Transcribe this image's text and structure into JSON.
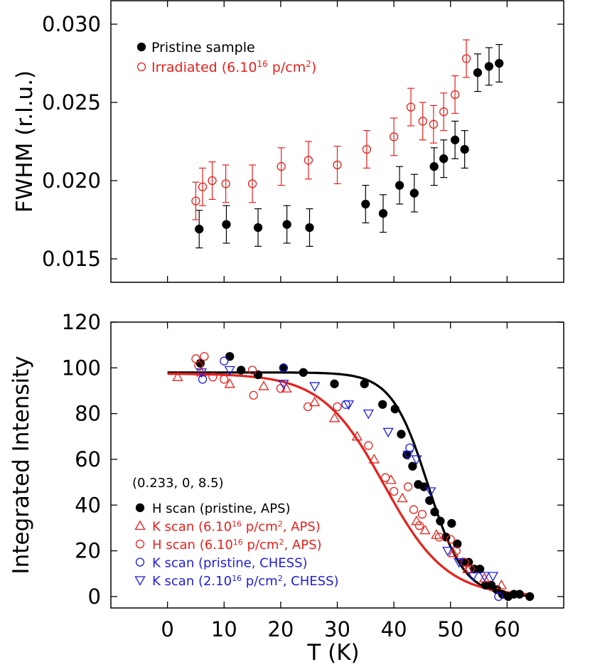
{
  "colors": {
    "black": "#000000",
    "red": "#e8201c",
    "blue": "#1e1ee0"
  },
  "chart_data": [
    {
      "type": "scatter",
      "panel": "top",
      "title": "",
      "xlabel": "",
      "ylabel": "FWHM (r.l.u.)",
      "xlim": [
        -10,
        70
      ],
      "ylim": [
        0.0135,
        0.0315
      ],
      "xticks": [
        0,
        10,
        20,
        30,
        40,
        50,
        60
      ],
      "yticks": [
        0.015,
        0.02,
        0.025,
        0.03
      ],
      "ytick_labels": [
        "0.015",
        "0.020",
        "0.025",
        "0.030"
      ],
      "legend_position": "top-left",
      "legend": [
        {
          "label": "Pristine sample",
          "marker": "filled-circle",
          "color": "#000000"
        },
        {
          "label_pre": "Irradiated (6.10",
          "label_sup1": "16",
          "label_mid": " p/cm",
          "label_sup2": "2",
          "label_post": ")",
          "marker": "open-circle",
          "color": "#e8201c"
        }
      ],
      "series": [
        {
          "name": "Pristine sample",
          "marker": "filled-circle",
          "color": "#000000",
          "x": [
            5.6,
            10.4,
            16.0,
            21.1,
            25.1,
            35.0,
            38.1,
            41.0,
            43.6,
            47.1,
            48.8,
            50.8,
            52.5,
            54.8,
            56.8,
            58.6
          ],
          "y": [
            0.0169,
            0.0172,
            0.017,
            0.0172,
            0.017,
            0.0185,
            0.0179,
            0.0197,
            0.0192,
            0.0209,
            0.0214,
            0.0226,
            0.022,
            0.0269,
            0.0273,
            0.0275
          ],
          "err": [
            0.0012,
            0.0012,
            0.0012,
            0.0012,
            0.0012,
            0.0012,
            0.0012,
            0.0012,
            0.0012,
            0.0012,
            0.0012,
            0.0012,
            0.0012,
            0.0012,
            0.0012,
            0.0012
          ]
        },
        {
          "name": "Irradiated (6.10^16 p/cm^2)",
          "marker": "open-circle",
          "color": "#e8201c",
          "x": [
            5.0,
            6.2,
            7.9,
            10.3,
            15.0,
            20.1,
            24.9,
            30.0,
            35.2,
            40.0,
            43.0,
            45.1,
            47.0,
            48.8,
            50.8,
            52.8
          ],
          "y": [
            0.0187,
            0.0196,
            0.02,
            0.0198,
            0.0198,
            0.0209,
            0.0213,
            0.021,
            0.022,
            0.0228,
            0.0247,
            0.0238,
            0.0236,
            0.0244,
            0.0255,
            0.0278
          ],
          "err": [
            0.0012,
            0.0012,
            0.0012,
            0.0012,
            0.0012,
            0.0012,
            0.0012,
            0.0012,
            0.0012,
            0.0012,
            0.0012,
            0.0012,
            0.0012,
            0.0012,
            0.0012,
            0.0012
          ]
        }
      ]
    },
    {
      "type": "scatter",
      "panel": "bottom",
      "title": "",
      "xlabel": "T (K)",
      "ylabel": "Integrated Intensity",
      "xlim": [
        -10,
        70
      ],
      "ylim": [
        -5,
        120
      ],
      "xticks": [
        0,
        10,
        20,
        30,
        40,
        50,
        60
      ],
      "xtick_labels": [
        "0",
        "10",
        "20",
        "30",
        "40",
        "50",
        "60"
      ],
      "yticks": [
        0,
        20,
        40,
        60,
        80,
        100,
        120
      ],
      "ytick_labels": [
        "0",
        "20",
        "40",
        "60",
        "80",
        "100",
        "120"
      ],
      "annotation": "(0.233, 0, 8.5)",
      "legend_position": "bottom-left",
      "legend": [
        {
          "label_pre": "H scan (pristine, APS)",
          "label_sup1": "",
          "label_mid": "",
          "label_sup2": "",
          "label_post": "",
          "marker": "filled-circle",
          "color": "#000000"
        },
        {
          "label_pre": "K scan (6.10",
          "label_sup1": "16",
          "label_mid": " p/cm",
          "label_sup2": "2",
          "label_post": ", APS)",
          "marker": "open-triangle-up",
          "color": "#e8201c"
        },
        {
          "label_pre": "H scan (6.10",
          "label_sup1": "16",
          "label_mid": " p/cm",
          "label_sup2": "2",
          "label_post": ", APS)",
          "marker": "open-circle",
          "color": "#e8201c"
        },
        {
          "label_pre": "K scan (pristine, CHESS)",
          "label_sup1": "",
          "label_mid": "",
          "label_sup2": "",
          "label_post": "",
          "marker": "open-circle",
          "color": "#1e1ee0"
        },
        {
          "label_pre": "K scan (2.10",
          "label_sup1": "16",
          "label_mid": " p/cm",
          "label_sup2": "2",
          "label_post": ", CHESS)",
          "marker": "open-triangle-down",
          "color": "#1e1ee0"
        }
      ],
      "fits": [
        {
          "name": "fit pristine",
          "color": "#000000",
          "A": 98,
          "Tc": 46.0,
          "w": 3.2,
          "x_range": [
            0,
            64.5
          ]
        },
        {
          "name": "fit irradiated",
          "color": "#e8201c",
          "A": 97.5,
          "Tc": 38.3,
          "w": 5.5,
          "x_range": [
            0,
            64.5
          ]
        }
      ],
      "series": [
        {
          "name": "H scan (pristine, APS)",
          "marker": "filled-circle",
          "color": "#000000",
          "x": [
            5.8,
            11.0,
            13.0,
            16.0,
            20.5,
            24.0,
            29.5,
            34.8,
            38.0,
            40.2,
            41.3,
            42.3,
            43.3,
            44.3,
            45.3,
            46.3,
            47.2,
            48.2,
            49.2,
            50.2,
            51.2,
            52.2,
            53.2,
            54.2,
            55.2,
            56.2,
            57.2,
            58.2,
            59.2,
            60.2,
            61.2,
            62.2,
            64.0
          ],
          "y": [
            102,
            105,
            99,
            97,
            100,
            98,
            93,
            93,
            84,
            82,
            71,
            62,
            57,
            49,
            48,
            42,
            37,
            33,
            26,
            32,
            23,
            15,
            15,
            12,
            12,
            5,
            5,
            3,
            1,
            0,
            1,
            1,
            0
          ]
        },
        {
          "name": "K scan (6.10^16 p/cm^2, APS)",
          "marker": "open-triangle-up",
          "color": "#e8201c",
          "x": [
            1.8,
            6.0,
            11.0,
            17.0,
            21.0,
            26.0,
            29.5,
            33.5,
            36.5,
            39.5,
            41.5,
            44.0,
            45.5,
            47.5,
            50.5,
            53.0,
            56.0,
            59.0
          ],
          "y": [
            96,
            98,
            93,
            92,
            91,
            85,
            78,
            70,
            60,
            51,
            43,
            33,
            29,
            27,
            19,
            12,
            8,
            5
          ]
        },
        {
          "name": "H scan (6.10^16 p/cm^2, APS)",
          "marker": "open-circle",
          "color": "#e8201c",
          "x": [
            5.0,
            5.5,
            6.5,
            8.0,
            10.0,
            15.0,
            15.2,
            20.0,
            24.8,
            30.0,
            35.5,
            38.5,
            40.0,
            42.5,
            43.5,
            44.5,
            45.0,
            48.0,
            50.0,
            51.0,
            52.5,
            53.5
          ],
          "y": [
            104,
            101,
            105,
            96,
            95,
            99,
            88,
            91,
            83,
            83,
            66,
            52,
            46,
            48,
            38,
            31,
            36,
            26,
            25,
            20,
            15,
            12
          ]
        },
        {
          "name": "K scan (pristine, CHESS)",
          "marker": "open-circle",
          "color": "#1e1ee0",
          "x": [
            6.2,
            10.0,
            20.5,
            31.5,
            42.8,
            58.5
          ],
          "y": [
            95,
            103,
            100,
            84,
            65,
            0
          ]
        },
        {
          "name": "K scan (2.10^16 p/cm^2, CHESS)",
          "marker": "open-triangle-down",
          "color": "#1e1ee0",
          "x": [
            6.0,
            11.0,
            20.5,
            26.0,
            32.0,
            35.5,
            39.0,
            42.5,
            44.0,
            46.5,
            49.5,
            51.5,
            54.0,
            56.0,
            57.5
          ],
          "y": [
            98,
            99,
            93,
            92,
            84,
            80,
            72,
            62,
            60,
            46,
            20,
            15,
            9,
            9,
            9
          ]
        }
      ]
    }
  ]
}
